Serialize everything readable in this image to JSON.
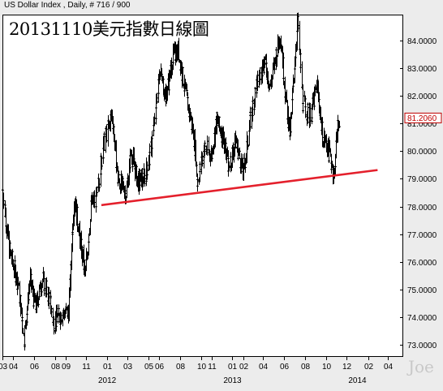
{
  "header": "US Dollar Index , Daily, # 716 / 900",
  "title": "20131110美元指數日線圖",
  "watermark": "Joe",
  "last_price_label": "81.2060",
  "colors": {
    "background": "#ececec",
    "plot_bg": "#ffffff",
    "price": "#000000",
    "trendline": "#e4202c",
    "last_price": "#c00000"
  },
  "chart_data": {
    "type": "ohlc",
    "title": "20131110美元指數日線圖",
    "subtitle": "US Dollar Index , Daily, # 716 / 900",
    "xlabel": "",
    "ylabel": "",
    "ylim": [
      72.55,
      84.95
    ],
    "y_ticks": [
      73,
      74,
      75,
      76,
      77,
      78,
      79,
      80,
      81,
      82,
      83,
      84
    ],
    "y_tick_labels": [
      "73.0000",
      "74.0000",
      "75.0000",
      "76.0000",
      "77.0000",
      "78.0000",
      "79.0000",
      "80.0000",
      "81.0000",
      "82.0000",
      "83.0000",
      "84.0000"
    ],
    "xlim": [
      "2011-03-01",
      "2014-05-15"
    ],
    "x_month_ticks": [
      {
        "date": "2011-03-01",
        "label": "03"
      },
      {
        "date": "2011-04-01",
        "label": "04"
      },
      {
        "date": "2011-06-01",
        "label": "06"
      },
      {
        "date": "2011-08-01",
        "label": "08"
      },
      {
        "date": "2011-09-01",
        "label": "09"
      },
      {
        "date": "2011-11-01",
        "label": "11"
      },
      {
        "date": "2012-01-01",
        "label": "01"
      },
      {
        "date": "2012-03-01",
        "label": "03"
      },
      {
        "date": "2012-05-01",
        "label": "05"
      },
      {
        "date": "2012-06-01",
        "label": "06"
      },
      {
        "date": "2012-08-01",
        "label": "08"
      },
      {
        "date": "2012-10-01",
        "label": "10"
      },
      {
        "date": "2012-11-01",
        "label": "11"
      },
      {
        "date": "2013-01-01",
        "label": "01"
      },
      {
        "date": "2013-02-01",
        "label": "02"
      },
      {
        "date": "2013-04-01",
        "label": "04"
      },
      {
        "date": "2013-06-01",
        "label": "06"
      },
      {
        "date": "2013-08-01",
        "label": "08"
      },
      {
        "date": "2013-10-01",
        "label": "10"
      },
      {
        "date": "2013-12-01",
        "label": "12"
      },
      {
        "date": "2014-02-01",
        "label": "02"
      },
      {
        "date": "2014-04-01",
        "label": "04"
      }
    ],
    "x_year_labels": [
      {
        "date": "2012-01-01",
        "label": "2012"
      },
      {
        "date": "2013-01-01",
        "label": "2013"
      },
      {
        "date": "2014-01-01",
        "label": "2014"
      }
    ],
    "price_path": [
      {
        "date": "2011-03-01",
        "value": 78.6
      },
      {
        "date": "2011-03-20",
        "value": 76.5
      },
      {
        "date": "2011-04-15",
        "value": 75.2
      },
      {
        "date": "2011-05-03",
        "value": 73.2
      },
      {
        "date": "2011-05-20",
        "value": 75.4
      },
      {
        "date": "2011-06-05",
        "value": 74.3
      },
      {
        "date": "2011-06-25",
        "value": 75.4
      },
      {
        "date": "2011-07-15",
        "value": 74.7
      },
      {
        "date": "2011-07-28",
        "value": 73.8
      },
      {
        "date": "2011-08-20",
        "value": 74.1
      },
      {
        "date": "2011-09-10",
        "value": 74.2
      },
      {
        "date": "2011-09-25",
        "value": 78.4
      },
      {
        "date": "2011-10-10",
        "value": 77.1
      },
      {
        "date": "2011-10-28",
        "value": 75.5
      },
      {
        "date": "2011-11-15",
        "value": 78.1
      },
      {
        "date": "2011-11-30",
        "value": 78.3
      },
      {
        "date": "2011-12-20",
        "value": 80.2
      },
      {
        "date": "2012-01-15",
        "value": 81.4
      },
      {
        "date": "2012-01-31",
        "value": 79.0
      },
      {
        "date": "2012-02-25",
        "value": 78.5
      },
      {
        "date": "2012-03-10",
        "value": 80.0
      },
      {
        "date": "2012-03-30",
        "value": 78.9
      },
      {
        "date": "2012-04-20",
        "value": 79.1
      },
      {
        "date": "2012-05-05",
        "value": 79.9
      },
      {
        "date": "2012-05-20",
        "value": 81.3
      },
      {
        "date": "2012-06-01",
        "value": 83.0
      },
      {
        "date": "2012-06-20",
        "value": 82.0
      },
      {
        "date": "2012-07-10",
        "value": 83.4
      },
      {
        "date": "2012-07-25",
        "value": 83.7
      },
      {
        "date": "2012-08-15",
        "value": 82.2
      },
      {
        "date": "2012-09-10",
        "value": 80.5
      },
      {
        "date": "2012-09-20",
        "value": 78.9
      },
      {
        "date": "2012-10-10",
        "value": 80.1
      },
      {
        "date": "2012-11-01",
        "value": 79.9
      },
      {
        "date": "2012-11-15",
        "value": 81.1
      },
      {
        "date": "2012-12-05",
        "value": 80.5
      },
      {
        "date": "2012-12-20",
        "value": 79.4
      },
      {
        "date": "2013-01-10",
        "value": 80.4
      },
      {
        "date": "2013-02-01",
        "value": 79.2
      },
      {
        "date": "2013-02-20",
        "value": 81.0
      },
      {
        "date": "2013-03-10",
        "value": 82.3
      },
      {
        "date": "2013-04-05",
        "value": 83.3
      },
      {
        "date": "2013-04-20",
        "value": 82.3
      },
      {
        "date": "2013-05-20",
        "value": 84.3
      },
      {
        "date": "2013-06-05",
        "value": 81.9
      },
      {
        "date": "2013-06-18",
        "value": 80.6
      },
      {
        "date": "2013-07-09",
        "value": 84.8
      },
      {
        "date": "2013-07-25",
        "value": 81.8
      },
      {
        "date": "2013-08-15",
        "value": 81.2
      },
      {
        "date": "2013-09-05",
        "value": 82.4
      },
      {
        "date": "2013-09-20",
        "value": 80.6
      },
      {
        "date": "2013-10-05",
        "value": 80.2
      },
      {
        "date": "2013-10-25",
        "value": 79.1
      },
      {
        "date": "2013-11-01",
        "value": 80.6
      },
      {
        "date": "2013-11-08",
        "value": 81.2
      }
    ],
    "annotations": [
      {
        "type": "trendline",
        "color": "#e4202c",
        "start": {
          "date": "2011-12-15",
          "value": 78.05
        },
        "end": {
          "date": "2014-03-01",
          "value": 79.32
        }
      },
      {
        "type": "last_price",
        "value": 81.206,
        "label": "81.2060"
      }
    ]
  }
}
